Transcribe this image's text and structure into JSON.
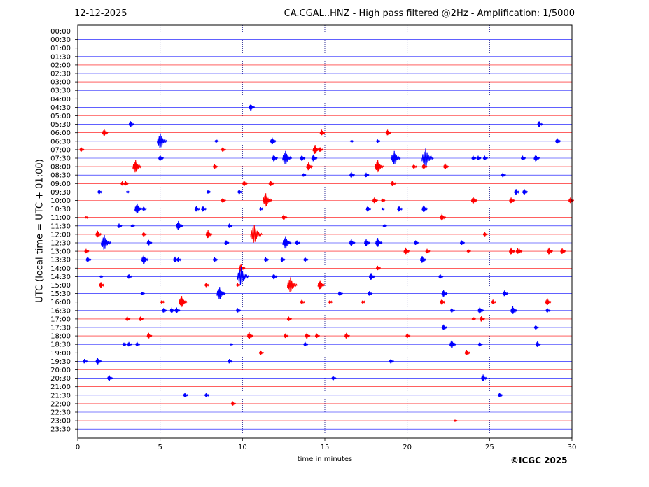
{
  "header": {
    "date": "12-12-2025",
    "title": "CA.CGAL..HNZ - High pass filtered @2Hz - Amplification: 1/5000"
  },
  "footer": {
    "copyright": "©ICGC 2025"
  },
  "colors": {
    "trace_a": "#ff0000",
    "trace_b": "#0000ff",
    "grid": "#000080",
    "frame": "#000000"
  },
  "chart_data": {
    "type": "line",
    "title": "CA.CGAL..HNZ - High pass filtered @2Hz - Amplification: 1/5000",
    "xlabel": "time in minutes",
    "ylabel": "UTC (local time = UTC + 01:00)",
    "xlim": [
      0,
      30
    ],
    "x_ticks": [
      0,
      5,
      10,
      15,
      20,
      25,
      30
    ],
    "x_tick_labels": [
      "0",
      "5",
      "10",
      "15",
      "20",
      "25",
      "30"
    ],
    "grid": "vertical dotted lines at 5, 10, 15, 20, 25",
    "rows": [
      "00:00",
      "00:30",
      "01:00",
      "01:30",
      "02:00",
      "02:30",
      "03:00",
      "03:30",
      "04:00",
      "04:30",
      "05:00",
      "05:30",
      "06:00",
      "06:30",
      "07:00",
      "07:30",
      "08:00",
      "08:30",
      "09:00",
      "09:30",
      "10:00",
      "10:30",
      "11:00",
      "11:30",
      "12:00",
      "12:30",
      "13:00",
      "13:30",
      "14:00",
      "14:30",
      "15:00",
      "15:30",
      "16:00",
      "16:30",
      "17:00",
      "17:30",
      "18:00",
      "18:30",
      "19:00",
      "19:30",
      "20:00",
      "20:30",
      "21:00",
      "21:30",
      "22:00",
      "22:30",
      "23:00",
      "23:30"
    ],
    "row_colors": "alternating red (even rows) and blue (odd rows)",
    "events": [
      {
        "row": "04:30",
        "t": 10.5,
        "amp": 0.6
      },
      {
        "row": "05:30",
        "t": 3.2,
        "amp": 0.5
      },
      {
        "row": "05:30",
        "t": 28.0,
        "amp": 0.5
      },
      {
        "row": "06:00",
        "t": 1.6,
        "amp": 0.6
      },
      {
        "row": "06:00",
        "t": 14.8,
        "amp": 0.5
      },
      {
        "row": "06:00",
        "t": 18.8,
        "amp": 0.5
      },
      {
        "row": "06:30",
        "t": 5.0,
        "amp": 1.3
      },
      {
        "row": "06:30",
        "t": 8.4,
        "amp": 0.3
      },
      {
        "row": "06:30",
        "t": 11.8,
        "amp": 0.6
      },
      {
        "row": "06:30",
        "t": 16.6,
        "amp": 0.2
      },
      {
        "row": "06:30",
        "t": 18.2,
        "amp": 0.3
      },
      {
        "row": "06:30",
        "t": 29.1,
        "amp": 0.5
      },
      {
        "row": "07:00",
        "t": 0.2,
        "amp": 0.4
      },
      {
        "row": "07:00",
        "t": 8.8,
        "amp": 0.4
      },
      {
        "row": "07:00",
        "t": 14.4,
        "amp": 0.8
      },
      {
        "row": "07:00",
        "t": 14.7,
        "amp": 0.4
      },
      {
        "row": "07:30",
        "t": 5.0,
        "amp": 0.5
      },
      {
        "row": "07:30",
        "t": 11.9,
        "amp": 0.6
      },
      {
        "row": "07:30",
        "t": 12.6,
        "amp": 1.2
      },
      {
        "row": "07:30",
        "t": 13.6,
        "amp": 0.5
      },
      {
        "row": "07:30",
        "t": 14.3,
        "amp": 0.6
      },
      {
        "row": "07:30",
        "t": 19.2,
        "amp": 1.2
      },
      {
        "row": "07:30",
        "t": 21.1,
        "amp": 1.6
      },
      {
        "row": "07:30",
        "t": 24.0,
        "amp": 0.4
      },
      {
        "row": "07:30",
        "t": 24.3,
        "amp": 0.4
      },
      {
        "row": "07:30",
        "t": 24.7,
        "amp": 0.4
      },
      {
        "row": "07:30",
        "t": 27.0,
        "amp": 0.4
      },
      {
        "row": "07:30",
        "t": 27.8,
        "amp": 0.6
      },
      {
        "row": "08:00",
        "t": 3.5,
        "amp": 1.1
      },
      {
        "row": "08:00",
        "t": 8.3,
        "amp": 0.4
      },
      {
        "row": "08:00",
        "t": 14.0,
        "amp": 0.7
      },
      {
        "row": "08:00",
        "t": 18.2,
        "amp": 1.1
      },
      {
        "row": "08:00",
        "t": 20.4,
        "amp": 0.4
      },
      {
        "row": "08:00",
        "t": 21.0,
        "amp": 0.5
      },
      {
        "row": "08:00",
        "t": 22.3,
        "amp": 0.5
      },
      {
        "row": "08:30",
        "t": 13.7,
        "amp": 0.3
      },
      {
        "row": "08:30",
        "t": 16.6,
        "amp": 0.5
      },
      {
        "row": "08:30",
        "t": 17.5,
        "amp": 0.4
      },
      {
        "row": "08:30",
        "t": 25.8,
        "amp": 0.4
      },
      {
        "row": "09:00",
        "t": 2.7,
        "amp": 0.4
      },
      {
        "row": "09:00",
        "t": 2.9,
        "amp": 0.4
      },
      {
        "row": "09:00",
        "t": 10.1,
        "amp": 0.5
      },
      {
        "row": "09:00",
        "t": 11.7,
        "amp": 0.5
      },
      {
        "row": "09:00",
        "t": 19.1,
        "amp": 0.5
      },
      {
        "row": "09:30",
        "t": 1.3,
        "amp": 0.4
      },
      {
        "row": "09:30",
        "t": 3.0,
        "amp": 0.2
      },
      {
        "row": "09:30",
        "t": 7.9,
        "amp": 0.3
      },
      {
        "row": "09:30",
        "t": 9.8,
        "amp": 0.4
      },
      {
        "row": "09:30",
        "t": 26.6,
        "amp": 0.5
      },
      {
        "row": "09:30",
        "t": 27.1,
        "amp": 0.5
      },
      {
        "row": "10:00",
        "t": 8.8,
        "amp": 0.4
      },
      {
        "row": "10:00",
        "t": 11.4,
        "amp": 1.2
      },
      {
        "row": "10:00",
        "t": 18.0,
        "amp": 0.5
      },
      {
        "row": "10:00",
        "t": 18.5,
        "amp": 0.3
      },
      {
        "row": "10:00",
        "t": 24.0,
        "amp": 0.6
      },
      {
        "row": "10:00",
        "t": 26.3,
        "amp": 0.5
      },
      {
        "row": "10:00",
        "t": 29.9,
        "amp": 0.5
      },
      {
        "row": "10:30",
        "t": 3.6,
        "amp": 0.9
      },
      {
        "row": "10:30",
        "t": 4.0,
        "amp": 0.4
      },
      {
        "row": "10:30",
        "t": 7.2,
        "amp": 0.5
      },
      {
        "row": "10:30",
        "t": 7.6,
        "amp": 0.5
      },
      {
        "row": "10:30",
        "t": 11.1,
        "amp": 0.3
      },
      {
        "row": "10:30",
        "t": 17.6,
        "amp": 0.5
      },
      {
        "row": "10:30",
        "t": 18.5,
        "amp": 0.2
      },
      {
        "row": "10:30",
        "t": 19.5,
        "amp": 0.5
      },
      {
        "row": "10:30",
        "t": 21.0,
        "amp": 0.6
      },
      {
        "row": "11:00",
        "t": 0.5,
        "amp": 0.2
      },
      {
        "row": "11:00",
        "t": 12.5,
        "amp": 0.5
      },
      {
        "row": "11:00",
        "t": 22.1,
        "amp": 0.6
      },
      {
        "row": "11:30",
        "t": 2.5,
        "amp": 0.4
      },
      {
        "row": "11:30",
        "t": 3.3,
        "amp": 0.3
      },
      {
        "row": "11:30",
        "t": 6.1,
        "amp": 0.8
      },
      {
        "row": "11:30",
        "t": 9.2,
        "amp": 0.4
      },
      {
        "row": "11:30",
        "t": 18.6,
        "amp": 0.3
      },
      {
        "row": "12:00",
        "t": 1.2,
        "amp": 0.6
      },
      {
        "row": "12:00",
        "t": 4.0,
        "amp": 0.4
      },
      {
        "row": "12:00",
        "t": 7.9,
        "amp": 0.7
      },
      {
        "row": "12:00",
        "t": 10.7,
        "amp": 1.6
      },
      {
        "row": "12:00",
        "t": 24.7,
        "amp": 0.4
      },
      {
        "row": "12:30",
        "t": 1.6,
        "amp": 1.3
      },
      {
        "row": "12:30",
        "t": 4.3,
        "amp": 0.5
      },
      {
        "row": "12:30",
        "t": 9.0,
        "amp": 0.4
      },
      {
        "row": "12:30",
        "t": 12.6,
        "amp": 1.1
      },
      {
        "row": "12:30",
        "t": 13.3,
        "amp": 0.4
      },
      {
        "row": "12:30",
        "t": 16.6,
        "amp": 0.6
      },
      {
        "row": "12:30",
        "t": 17.5,
        "amp": 0.6
      },
      {
        "row": "12:30",
        "t": 18.2,
        "amp": 0.8
      },
      {
        "row": "12:30",
        "t": 20.5,
        "amp": 0.4
      },
      {
        "row": "12:30",
        "t": 23.3,
        "amp": 0.4
      },
      {
        "row": "13:00",
        "t": 0.5,
        "amp": 0.4
      },
      {
        "row": "13:00",
        "t": 19.9,
        "amp": 0.6
      },
      {
        "row": "13:00",
        "t": 21.2,
        "amp": 0.4
      },
      {
        "row": "13:00",
        "t": 23.7,
        "amp": 0.3
      },
      {
        "row": "13:00",
        "t": 26.3,
        "amp": 0.6
      },
      {
        "row": "13:00",
        "t": 26.7,
        "amp": 0.5
      },
      {
        "row": "13:00",
        "t": 26.8,
        "amp": 0.4
      },
      {
        "row": "13:00",
        "t": 28.6,
        "amp": 0.6
      },
      {
        "row": "13:00",
        "t": 29.4,
        "amp": 0.5
      },
      {
        "row": "13:30",
        "t": 0.6,
        "amp": 0.5
      },
      {
        "row": "13:30",
        "t": 4.0,
        "amp": 0.8
      },
      {
        "row": "13:30",
        "t": 5.9,
        "amp": 0.5
      },
      {
        "row": "13:30",
        "t": 6.1,
        "amp": 0.4
      },
      {
        "row": "13:30",
        "t": 8.3,
        "amp": 0.4
      },
      {
        "row": "13:30",
        "t": 11.4,
        "amp": 0.4
      },
      {
        "row": "13:30",
        "t": 12.4,
        "amp": 0.4
      },
      {
        "row": "13:30",
        "t": 13.8,
        "amp": 0.4
      },
      {
        "row": "13:30",
        "t": 20.9,
        "amp": 0.6
      },
      {
        "row": "14:00",
        "t": 9.9,
        "amp": 0.7
      },
      {
        "row": "14:00",
        "t": 18.2,
        "amp": 0.4
      },
      {
        "row": "14:30",
        "t": 1.4,
        "amp": 0.2
      },
      {
        "row": "14:30",
        "t": 3.1,
        "amp": 0.4
      },
      {
        "row": "14:30",
        "t": 9.9,
        "amp": 1.6
      },
      {
        "row": "14:30",
        "t": 11.9,
        "amp": 0.5
      },
      {
        "row": "14:30",
        "t": 17.8,
        "amp": 0.6
      },
      {
        "row": "14:30",
        "t": 22.0,
        "amp": 0.4
      },
      {
        "row": "15:00",
        "t": 1.4,
        "amp": 0.5
      },
      {
        "row": "15:00",
        "t": 7.8,
        "amp": 0.4
      },
      {
        "row": "15:00",
        "t": 9.7,
        "amp": 0.3
      },
      {
        "row": "15:00",
        "t": 12.9,
        "amp": 1.3
      },
      {
        "row": "15:00",
        "t": 14.7,
        "amp": 0.8
      },
      {
        "row": "15:30",
        "t": 3.9,
        "amp": 0.3
      },
      {
        "row": "15:30",
        "t": 8.6,
        "amp": 1.1
      },
      {
        "row": "15:30",
        "t": 15.9,
        "amp": 0.4
      },
      {
        "row": "15:30",
        "t": 17.7,
        "amp": 0.4
      },
      {
        "row": "15:30",
        "t": 22.2,
        "amp": 0.6
      },
      {
        "row": "15:30",
        "t": 25.9,
        "amp": 0.5
      },
      {
        "row": "16:00",
        "t": 5.1,
        "amp": 0.3
      },
      {
        "row": "16:00",
        "t": 6.3,
        "amp": 1.0
      },
      {
        "row": "16:00",
        "t": 13.6,
        "amp": 0.4
      },
      {
        "row": "16:00",
        "t": 15.3,
        "amp": 0.3
      },
      {
        "row": "16:00",
        "t": 17.3,
        "amp": 0.3
      },
      {
        "row": "16:00",
        "t": 22.1,
        "amp": 0.5
      },
      {
        "row": "16:00",
        "t": 25.2,
        "amp": 0.4
      },
      {
        "row": "16:00",
        "t": 28.5,
        "amp": 0.6
      },
      {
        "row": "16:30",
        "t": 5.2,
        "amp": 0.4
      },
      {
        "row": "16:30",
        "t": 5.7,
        "amp": 0.5
      },
      {
        "row": "16:30",
        "t": 6.0,
        "amp": 0.5
      },
      {
        "row": "16:30",
        "t": 9.7,
        "amp": 0.4
      },
      {
        "row": "16:30",
        "t": 22.7,
        "amp": 0.4
      },
      {
        "row": "16:30",
        "t": 24.4,
        "amp": 0.6
      },
      {
        "row": "16:30",
        "t": 26.4,
        "amp": 0.7
      },
      {
        "row": "16:30",
        "t": 28.5,
        "amp": 0.4
      },
      {
        "row": "17:00",
        "t": 3.0,
        "amp": 0.4
      },
      {
        "row": "17:00",
        "t": 3.8,
        "amp": 0.4
      },
      {
        "row": "17:00",
        "t": 12.8,
        "amp": 0.4
      },
      {
        "row": "17:00",
        "t": 24.0,
        "amp": 0.3
      },
      {
        "row": "17:00",
        "t": 24.5,
        "amp": 0.5
      },
      {
        "row": "17:30",
        "t": 22.2,
        "amp": 0.5
      },
      {
        "row": "17:30",
        "t": 27.8,
        "amp": 0.4
      },
      {
        "row": "18:00",
        "t": 4.3,
        "amp": 0.5
      },
      {
        "row": "18:00",
        "t": 10.4,
        "amp": 0.6
      },
      {
        "row": "18:00",
        "t": 12.6,
        "amp": 0.4
      },
      {
        "row": "18:00",
        "t": 13.9,
        "amp": 0.5
      },
      {
        "row": "18:00",
        "t": 14.5,
        "amp": 0.4
      },
      {
        "row": "18:00",
        "t": 16.3,
        "amp": 0.5
      },
      {
        "row": "18:00",
        "t": 20.0,
        "amp": 0.4
      },
      {
        "row": "18:30",
        "t": 2.8,
        "amp": 0.3
      },
      {
        "row": "18:30",
        "t": 3.1,
        "amp": 0.4
      },
      {
        "row": "18:30",
        "t": 3.6,
        "amp": 0.4
      },
      {
        "row": "18:30",
        "t": 9.3,
        "amp": 0.2
      },
      {
        "row": "18:30",
        "t": 13.8,
        "amp": 0.4
      },
      {
        "row": "18:30",
        "t": 22.7,
        "amp": 0.7
      },
      {
        "row": "18:30",
        "t": 24.4,
        "amp": 0.4
      },
      {
        "row": "18:30",
        "t": 27.9,
        "amp": 0.5
      },
      {
        "row": "19:00",
        "t": 11.1,
        "amp": 0.4
      },
      {
        "row": "19:00",
        "t": 23.6,
        "amp": 0.5
      },
      {
        "row": "19:30",
        "t": 0.4,
        "amp": 0.4
      },
      {
        "row": "19:30",
        "t": 1.2,
        "amp": 0.6
      },
      {
        "row": "19:30",
        "t": 9.2,
        "amp": 0.4
      },
      {
        "row": "19:30",
        "t": 19.0,
        "amp": 0.4
      },
      {
        "row": "20:30",
        "t": 1.9,
        "amp": 0.5
      },
      {
        "row": "20:30",
        "t": 15.5,
        "amp": 0.4
      },
      {
        "row": "20:30",
        "t": 24.6,
        "amp": 0.6
      },
      {
        "row": "21:30",
        "t": 6.5,
        "amp": 0.4
      },
      {
        "row": "21:30",
        "t": 7.8,
        "amp": 0.4
      },
      {
        "row": "21:30",
        "t": 25.6,
        "amp": 0.4
      },
      {
        "row": "22:00",
        "t": 9.4,
        "amp": 0.4
      },
      {
        "row": "23:00",
        "t": 22.9,
        "amp": 0.2
      }
    ]
  }
}
